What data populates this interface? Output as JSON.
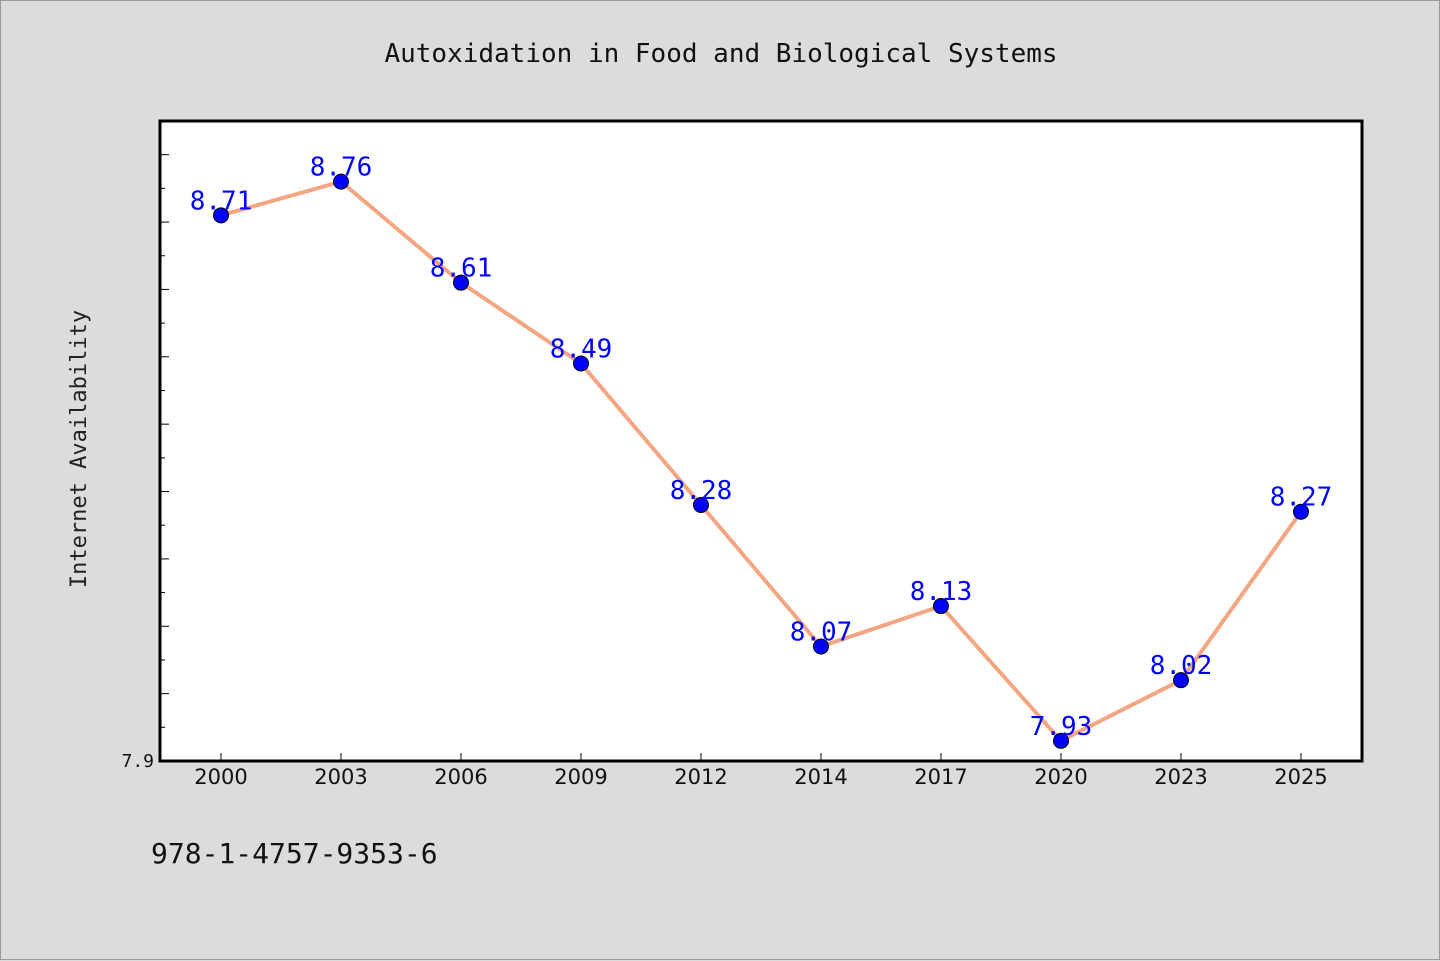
{
  "chart_data": {
    "type": "line",
    "title": "Autoxidation in Food and Biological Systems",
    "xlabel": "",
    "ylabel": "Internet Availability",
    "categories": [
      "2000",
      "2003",
      "2006",
      "2009",
      "2012",
      "2014",
      "2017",
      "2020",
      "2023",
      "2025"
    ],
    "series": [
      {
        "values": [
          8.71,
          8.76,
          8.61,
          8.49,
          8.28,
          8.07,
          8.13,
          7.93,
          8.02,
          8.27
        ]
      }
    ],
    "ylim": [
      7.9,
      8.85
    ],
    "y_tick_labels": [
      "7.9"
    ],
    "grid": false,
    "line_color": "#f4a582",
    "marker_color": "#0000ff",
    "label_color": "#0000ff",
    "plot_background": "#ffffff",
    "page_background": "#dcdcdc"
  },
  "footer": {
    "isbn": "978-1-4757-9353-6"
  }
}
